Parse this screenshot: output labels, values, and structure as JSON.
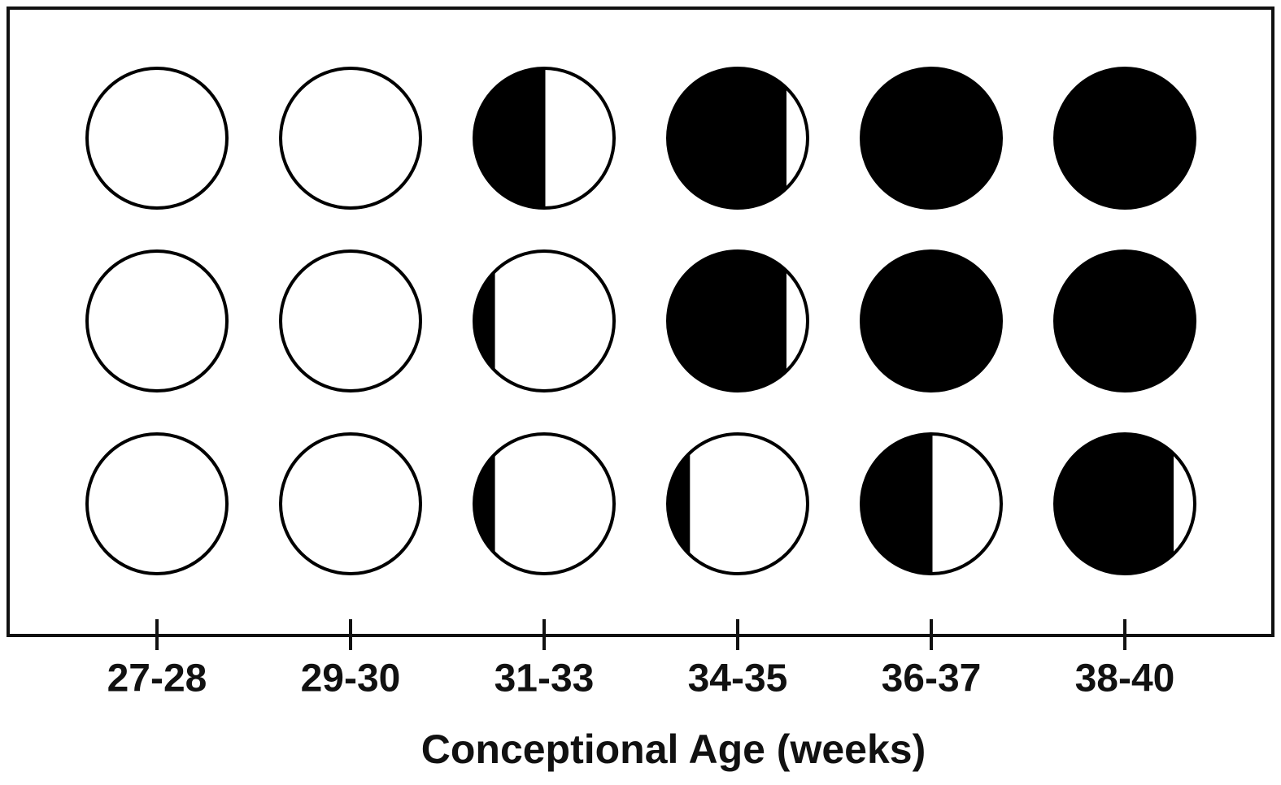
{
  "chart_data": {
    "type": "circle-grid",
    "categories": [
      "27-28",
      "29-30",
      "31-33",
      "34-35",
      "36-37",
      "38-40"
    ],
    "x_label": "Conceptional Age (weeks)",
    "rows": [
      [
        0,
        0,
        0.5,
        0.84,
        1,
        1
      ],
      [
        0,
        0,
        0.14,
        0.84,
        1,
        1
      ],
      [
        0,
        0,
        0.14,
        0.15,
        0.5,
        0.84
      ]
    ]
  }
}
